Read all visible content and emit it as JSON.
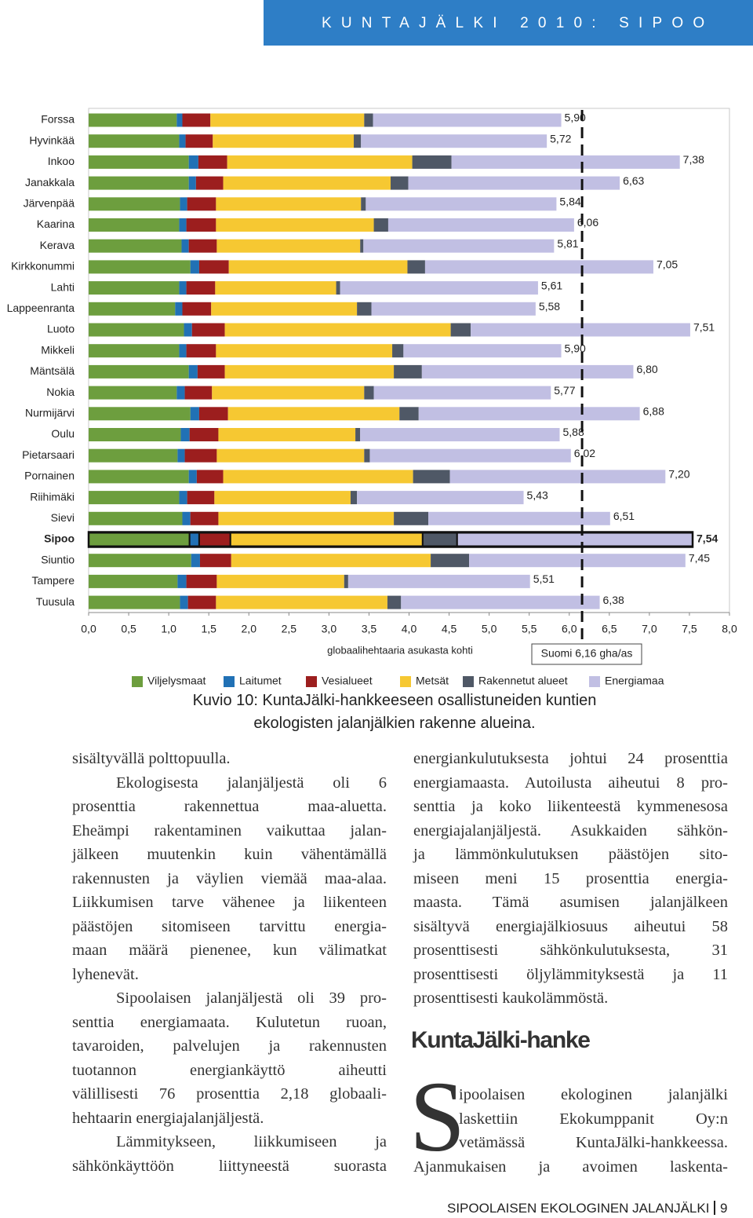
{
  "header": {
    "title": "KUNTAJÄLKI 2010: SIPOO"
  },
  "chart_data": {
    "type": "stacked-bar-horizontal",
    "categories": [
      "Forssa",
      "Hyvinkää",
      "Inkoo",
      "Janakkala",
      "Järvenpää",
      "Kaarina",
      "Kerava",
      "Kirkkonummi",
      "Lahti",
      "Lappeenranta",
      "Luoto",
      "Mikkeli",
      "Mäntsälä",
      "Nokia",
      "Nurmijärvi",
      "Oulu",
      "Pietarsaari",
      "Pornainen",
      "Riihimäki",
      "Sievi",
      "Sipoo",
      "Siuntio",
      "Tampere",
      "Tuusula"
    ],
    "series": [
      {
        "name": "Viljelysmaat",
        "color": "#6d9e3e",
        "values": [
          1.1,
          1.13,
          1.25,
          1.25,
          1.14,
          1.13,
          1.16,
          1.27,
          1.13,
          1.08,
          1.19,
          1.13,
          1.25,
          1.1,
          1.27,
          1.15,
          1.11,
          1.25,
          1.13,
          1.17,
          1.26,
          1.28,
          1.11,
          1.14
        ]
      },
      {
        "name": "Laitumet",
        "color": "#2171b5",
        "values": [
          0.07,
          0.08,
          0.12,
          0.09,
          0.09,
          0.09,
          0.09,
          0.11,
          0.09,
          0.09,
          0.1,
          0.09,
          0.11,
          0.1,
          0.11,
          0.11,
          0.09,
          0.1,
          0.1,
          0.1,
          0.12,
          0.11,
          0.11,
          0.1
        ]
      },
      {
        "name": "Vesialueet",
        "color": "#9c1e1e",
        "values": [
          0.35,
          0.34,
          0.36,
          0.34,
          0.36,
          0.37,
          0.35,
          0.37,
          0.36,
          0.36,
          0.41,
          0.37,
          0.34,
          0.34,
          0.36,
          0.36,
          0.4,
          0.33,
          0.34,
          0.35,
          0.39,
          0.39,
          0.38,
          0.35
        ]
      },
      {
        "name": "Metsät",
        "color": "#f6c832",
        "values": [
          1.92,
          1.76,
          2.31,
          2.09,
          1.81,
          1.97,
          1.79,
          2.23,
          1.51,
          1.82,
          2.82,
          2.2,
          2.11,
          1.9,
          2.14,
          1.71,
          1.84,
          2.37,
          1.7,
          2.19,
          2.4,
          2.49,
          1.59,
          2.14
        ]
      },
      {
        "name": "Rakennetut alueet",
        "color": "#4f5866",
        "values": [
          0.11,
          0.09,
          0.49,
          0.22,
          0.06,
          0.18,
          0.04,
          0.22,
          0.05,
          0.18,
          0.25,
          0.14,
          0.35,
          0.12,
          0.24,
          0.06,
          0.07,
          0.46,
          0.08,
          0.43,
          0.43,
          0.48,
          0.05,
          0.17
        ]
      },
      {
        "name": "Energiamaa",
        "color": "#c1bfe3",
        "values": [
          2.35,
          2.32,
          2.85,
          2.64,
          2.38,
          2.32,
          2.38,
          2.85,
          2.47,
          2.05,
          2.74,
          1.97,
          2.64,
          2.21,
          2.76,
          2.49,
          2.51,
          2.69,
          2.08,
          2.27,
          2.94,
          2.7,
          2.27,
          2.48
        ]
      }
    ],
    "totals": {
      "values": [
        5.9,
        5.72,
        7.38,
        6.63,
        5.84,
        6.06,
        5.81,
        7.05,
        5.61,
        5.58,
        7.51,
        5.9,
        6.8,
        5.77,
        6.88,
        5.88,
        6.02,
        7.2,
        5.43,
        6.51,
        7.54,
        7.45,
        5.51,
        6.38
      ],
      "value_labels": [
        "5,90",
        "5,72",
        "7,38",
        "6,63",
        "5,84",
        "6,06",
        "5,81",
        "7,05",
        "5,61",
        "5,58",
        "7,51",
        "5,90",
        "6,80",
        "5,77",
        "6,88",
        "5,88",
        "6,02",
        "7,20",
        "5,43",
        "6,51",
        "7,54",
        "7,45",
        "5,51",
        "6,38"
      ]
    },
    "highlight": "Sipoo",
    "xlim": [
      0,
      8
    ],
    "xticks": [
      {
        "value": 0,
        "label": "0,0"
      },
      {
        "value": 0.5,
        "label": "0,5"
      },
      {
        "value": 1,
        "label": "1,0"
      },
      {
        "value": 1.5,
        "label": "1,5"
      },
      {
        "value": 2,
        "label": "2,0"
      },
      {
        "value": 2.5,
        "label": "2,5"
      },
      {
        "value": 3,
        "label": "3,0"
      },
      {
        "value": 3.5,
        "label": "3,5"
      },
      {
        "value": 4,
        "label": "4,0"
      },
      {
        "value": 4.5,
        "label": "4,5"
      },
      {
        "value": 5,
        "label": "5,0"
      },
      {
        "value": 5.5,
        "label": "5,5"
      },
      {
        "value": 6,
        "label": "6,0"
      },
      {
        "value": 6.5,
        "label": "6,5"
      },
      {
        "value": 7,
        "label": "7,0"
      },
      {
        "value": 7.5,
        "label": "7,5"
      },
      {
        "value": 8,
        "label": "8,0"
      }
    ],
    "xlabel": "globaalihehtaaria asukasta kohti",
    "reference": {
      "value": 6.16,
      "label": "Suomi 6,16 gha/as"
    },
    "caption": [
      "Kuvio 10: KuntaJälki-hankkeeseen osallistuneiden kuntien",
      "ekologisten jalanjälkien rakenne alueina."
    ]
  },
  "body": {
    "left": [
      [
        "sisältyvällä polttopuulla."
      ],
      [
        "Ekologisesta jalanjäljestä oli 6",
        "prosenttia rakennettua maa-aluetta.",
        "Eheämpi rakentaminen vaikuttaa jalan-",
        "jälkeen muutenkin kuin vähentämällä",
        "rakennusten ja väylien viemää maa-alaa.",
        "Liikkumisen tarve vähenee ja liikenteen",
        "päästöjen sitomiseen tarvittu energia-",
        "maan määrä pienenee, kun välimatkat",
        "lyhenevät."
      ],
      [
        "Sipoolaisen jalanjäljestä oli 39 pro-",
        "senttia energiamaata. Kulutetun ruoan,",
        "tavaroiden, palvelujen ja rakennusten",
        "tuotannon energiankäyttö aiheutti",
        "välillisesti 76 prosenttia 2,18 globaali-",
        "hehtaarin energiajalanjäljestä."
      ],
      [
        "Lämmitykseen, liikkumiseen ja",
        "sähkönkäyttöön liittyneestä suorasta"
      ]
    ],
    "right": [
      [
        "energiankulutuksesta johtui 24 prosenttia",
        "energiamaasta. Autoilusta aiheutui 8 pro-",
        "senttia ja koko liikenteestä kymmenesosa",
        "energiajalanjäljestä. Asukkaiden sähkön-",
        "ja lämmönkulutuksen päästöjen sito-",
        "miseen meni 15 prosenttia energia-",
        "maasta. Tämä asumisen jalanjälkeen",
        "sisältyvä energiajälkiosuus aiheutui 58",
        "prosenttisesti sähkönkulutuksesta, 31",
        "prosenttisesti öljylämmityksestä ja 11",
        "prosenttisesti kaukolämmöstä."
      ]
    ],
    "heading": "KuntaJälki-hanke",
    "dropcap": "S",
    "dropcap_lines": [
      "ipoolaisen ekologinen jalanjälki",
      "laskettiin Ekokumppanit Oy:n",
      "vetämässä KuntaJälki-hankkeessa.",
      "Ajanmukaisen ja avoimen laskenta-"
    ]
  },
  "footer": {
    "title": "SIPOOLAISEN EKOLOGINEN JALANJÄLKI",
    "page": "9"
  }
}
